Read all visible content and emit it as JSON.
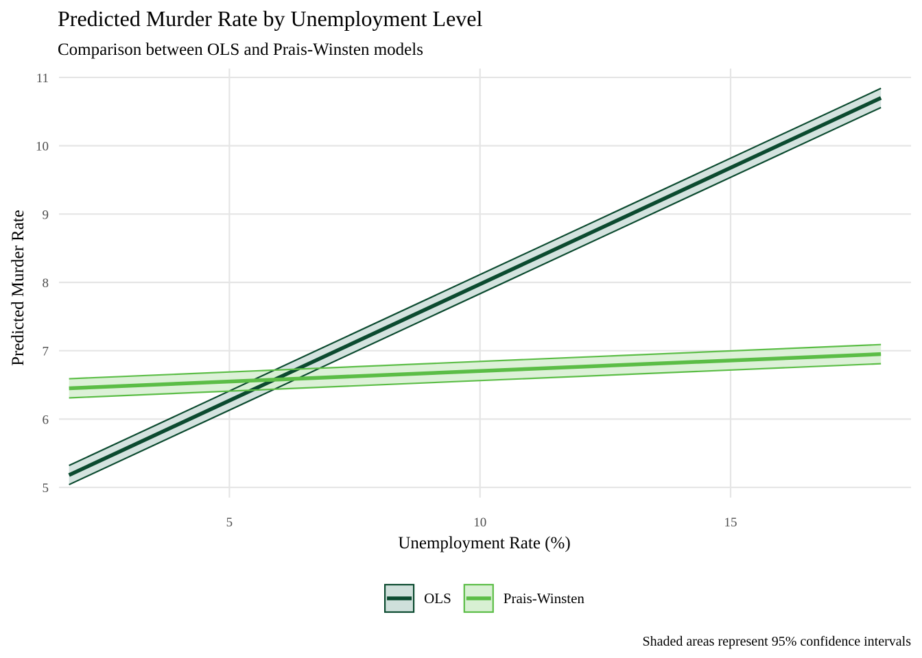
{
  "chart_data": {
    "type": "line",
    "title": "Predicted Murder Rate by Unemployment Level",
    "subtitle": "Comparison between OLS and Prais-Winsten models",
    "xlabel": "Unemployment Rate (%)",
    "ylabel": "Predicted Murder Rate",
    "caption": "Shaded areas represent 95% confidence intervals",
    "xlim": [
      1.6,
      18.6
    ],
    "ylim": [
      4.85,
      11.13
    ],
    "x_ticks": [
      5,
      10,
      15
    ],
    "x_tick_labels": [
      "5",
      "10",
      "15"
    ],
    "y_ticks": [
      5,
      6,
      7,
      8,
      9,
      10,
      11
    ],
    "y_tick_labels": [
      "5",
      "6",
      "7",
      "8",
      "9",
      "10",
      "11"
    ],
    "grid": true,
    "legend_position": "bottom",
    "series": [
      {
        "name": "OLS",
        "color": "#0b4a2f",
        "fill": "#cfe0db",
        "x": [
          1.8,
          18.0
        ],
        "y": [
          5.18,
          10.7
        ],
        "lower": [
          5.04,
          10.56
        ],
        "upper": [
          5.32,
          10.84
        ]
      },
      {
        "name": "Prais-Winsten",
        "color": "#5bbd46",
        "fill": "#d8f0d3",
        "x": [
          1.8,
          18.0
        ],
        "y": [
          6.45,
          6.95
        ],
        "lower": [
          6.31,
          6.81
        ],
        "upper": [
          6.59,
          7.09
        ]
      }
    ]
  }
}
